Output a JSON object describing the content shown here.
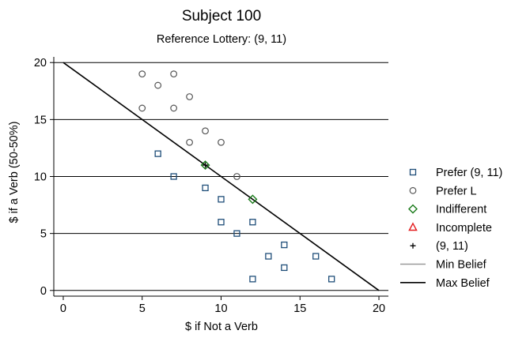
{
  "chart_data": {
    "type": "scatter",
    "title": "Subject 100",
    "subtitle": "Reference Lottery: (9, 11)",
    "xlabel": "$ if Not a Verb",
    "ylabel": "$ if a Verb (50-50%)",
    "xlim": [
      -0.6,
      20.6
    ],
    "ylim": [
      -0.5,
      20.5
    ],
    "xticks": [
      0,
      5,
      10,
      15,
      20
    ],
    "yticks": [
      0,
      5,
      10,
      15,
      20
    ],
    "grid": "horizontal",
    "legend_position": "right",
    "series": [
      {
        "name": "Prefer (9, 11)",
        "marker": "square",
        "color": "#1f4e79",
        "points": [
          [
            6,
            12
          ],
          [
            7,
            10
          ],
          [
            9,
            9
          ],
          [
            10,
            8
          ],
          [
            10,
            6
          ],
          [
            11,
            5
          ],
          [
            12,
            6
          ],
          [
            12,
            1
          ],
          [
            13,
            3
          ],
          [
            14,
            4
          ],
          [
            14,
            2
          ],
          [
            16,
            3
          ],
          [
            17,
            1
          ]
        ]
      },
      {
        "name": "Prefer L",
        "marker": "circle",
        "color": "#555555",
        "points": [
          [
            5,
            19
          ],
          [
            6,
            18
          ],
          [
            7,
            19
          ],
          [
            5,
            16
          ],
          [
            7,
            16
          ],
          [
            8,
            17
          ],
          [
            8,
            13
          ],
          [
            9,
            14
          ],
          [
            10,
            13
          ],
          [
            11,
            10
          ]
        ]
      },
      {
        "name": "Indifferent",
        "marker": "diamond",
        "color": "#1a7a1a",
        "points": [
          [
            9,
            11
          ],
          [
            12,
            8
          ]
        ]
      },
      {
        "name": "Incomplete",
        "marker": "triangle",
        "color": "#e31a1c",
        "points": []
      },
      {
        "name": "(9, 11)",
        "marker": "plus",
        "color": "#000000",
        "points": [
          [
            9,
            11
          ]
        ]
      }
    ],
    "lines": [
      {
        "name": "Min Belief",
        "color": "#999999",
        "points": []
      },
      {
        "name": "Max Belief",
        "color": "#000000",
        "points": [
          [
            0,
            20
          ],
          [
            20,
            0
          ]
        ]
      }
    ]
  }
}
